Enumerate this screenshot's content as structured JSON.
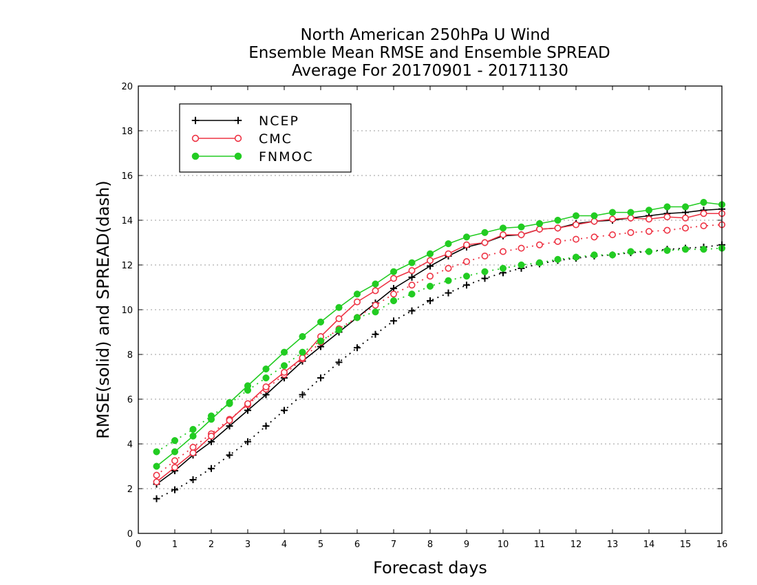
{
  "chart_data": {
    "type": "line",
    "title_lines": [
      "North American 250hPa U Wind",
      "Ensemble Mean RMSE and Ensemble SPREAD",
      "Average For 20170901 - 20171130"
    ],
    "xlabel": "Forecast days",
    "ylabel": "RMSE(solid) and SPREAD(dash)",
    "xlim": [
      0,
      16
    ],
    "ylim": [
      0,
      20
    ],
    "x_ticks": [
      0,
      1,
      2,
      3,
      4,
      5,
      6,
      7,
      8,
      9,
      10,
      11,
      12,
      13,
      14,
      15,
      16
    ],
    "y_ticks": [
      0,
      2,
      4,
      6,
      8,
      10,
      12,
      14,
      16,
      18,
      20
    ],
    "grid": true,
    "legend_position": "top-left",
    "x": [
      0.5,
      1,
      1.5,
      2,
      2.5,
      3,
      3.5,
      4,
      4.5,
      5,
      5.5,
      6,
      6.5,
      7,
      7.5,
      8,
      8.5,
      9,
      9.5,
      10,
      10.5,
      11,
      11.5,
      12,
      12.5,
      13,
      13.5,
      14,
      14.5,
      15,
      15.5,
      16
    ],
    "series": [
      {
        "name": "NCEP",
        "color": "#000000",
        "marker": "plus",
        "rmse": [
          2.2,
          2.8,
          3.5,
          4.1,
          4.8,
          5.5,
          6.2,
          6.95,
          7.7,
          8.35,
          9.0,
          9.65,
          10.3,
          10.95,
          11.45,
          11.95,
          12.4,
          12.8,
          13.0,
          13.3,
          13.35,
          13.6,
          13.65,
          13.85,
          13.95,
          14.0,
          14.1,
          14.2,
          14.3,
          14.35,
          14.45,
          14.5
        ],
        "spread": [
          1.55,
          1.95,
          2.4,
          2.9,
          3.5,
          4.1,
          4.8,
          5.5,
          6.2,
          6.95,
          7.65,
          8.3,
          8.9,
          9.5,
          9.95,
          10.4,
          10.75,
          11.1,
          11.4,
          11.65,
          11.85,
          12.05,
          12.2,
          12.3,
          12.4,
          12.45,
          12.55,
          12.6,
          12.7,
          12.75,
          12.8,
          12.9
        ]
      },
      {
        "name": "CMC",
        "color": "#ee3344",
        "marker": "open-circle",
        "rmse": [
          2.3,
          2.95,
          3.6,
          4.35,
          5.05,
          5.8,
          6.55,
          7.2,
          7.85,
          8.8,
          9.6,
          10.35,
          10.85,
          11.4,
          11.75,
          12.2,
          12.5,
          12.9,
          13.0,
          13.35,
          13.35,
          13.6,
          13.65,
          13.8,
          13.95,
          14.05,
          14.1,
          14.05,
          14.15,
          14.1,
          14.3,
          14.3
        ],
        "spread": [
          2.6,
          3.25,
          3.85,
          4.45,
          5.1,
          5.75,
          6.45,
          7.1,
          7.8,
          8.55,
          9.15,
          9.65,
          10.2,
          10.7,
          11.1,
          11.5,
          11.85,
          12.15,
          12.4,
          12.6,
          12.75,
          12.9,
          13.05,
          13.15,
          13.25,
          13.35,
          13.45,
          13.5,
          13.55,
          13.65,
          13.75,
          13.8
        ]
      },
      {
        "name": "FNMOC",
        "color": "#22cc22",
        "marker": "filled-circle",
        "rmse": [
          3.0,
          3.65,
          4.35,
          5.1,
          5.85,
          6.6,
          7.35,
          8.1,
          8.8,
          9.45,
          10.1,
          10.7,
          11.15,
          11.7,
          12.1,
          12.5,
          12.95,
          13.25,
          13.45,
          13.65,
          13.7,
          13.85,
          14.0,
          14.2,
          14.2,
          14.35,
          14.35,
          14.45,
          14.6,
          14.6,
          14.8,
          14.7
        ],
        "spread": [
          3.65,
          4.15,
          4.65,
          5.25,
          5.8,
          6.4,
          6.95,
          7.5,
          8.1,
          8.6,
          9.1,
          9.65,
          9.9,
          10.4,
          10.7,
          11.05,
          11.3,
          11.5,
          11.7,
          11.85,
          12.0,
          12.1,
          12.25,
          12.35,
          12.45,
          12.45,
          12.6,
          12.6,
          12.65,
          12.7,
          12.7,
          12.75
        ]
      }
    ]
  }
}
